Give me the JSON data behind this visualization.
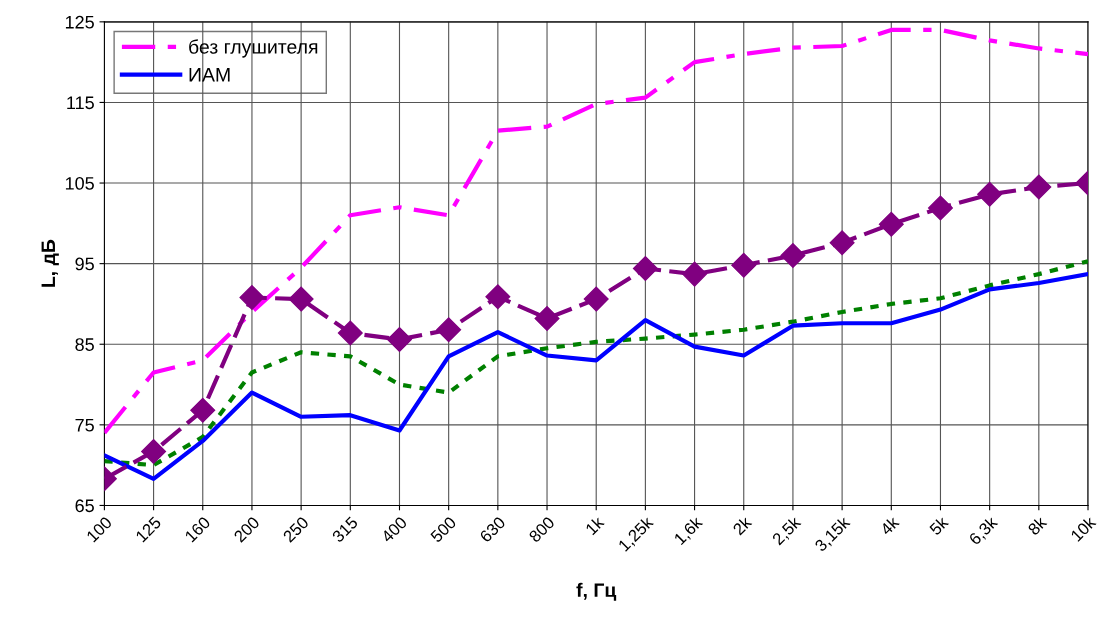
{
  "chart_data": {
    "type": "line",
    "xlabel": "f, Гц",
    "ylabel": "L, дБ",
    "categories": [
      "100",
      "125",
      "160",
      "200",
      "250",
      "315",
      "400",
      "500",
      "630",
      "800",
      "1k",
      "1,25k",
      "1,6k",
      "2k",
      "2,5k",
      "3,15k",
      "4k",
      "5k",
      "6,3k",
      "8k",
      "10k"
    ],
    "ylim": [
      65,
      125
    ],
    "yticks": [
      65,
      75,
      85,
      95,
      105,
      115,
      125
    ],
    "grid": true,
    "legend": "top left",
    "series": [
      {
        "name": "без глушителя",
        "color": "#ff00ff",
        "line_style": "dashdot",
        "values": [
          74,
          81.5,
          83,
          89,
          94.5,
          101,
          102,
          101,
          111.5,
          112,
          114.8,
          115.6,
          120,
          121,
          121.8,
          122,
          124,
          124,
          122.7,
          121.7,
          121
        ]
      },
      {
        "color": "#008000",
        "line_style": "dotted",
        "values": [
          70.5,
          70,
          73.5,
          81.5,
          84,
          83.5,
          80,
          79,
          83.5,
          84.5,
          85.3,
          85.7,
          86.2,
          86.8,
          87.8,
          89,
          90,
          90.7,
          92.3,
          93.7,
          95.3
        ]
      },
      {
        "name": "ИАМ",
        "color": "#0000ff",
        "line_style": "solid",
        "values": [
          71.2,
          68.3,
          73,
          79,
          76,
          76.2,
          74.3,
          83.5,
          86.5,
          83.6,
          83,
          88,
          84.7,
          83.6,
          87.3,
          87.6,
          87.6,
          89.3,
          91.8,
          92.6,
          93.7
        ]
      },
      {
        "color": "#800080",
        "line_style": "dashed",
        "marker": "diamond",
        "values": [
          68.3,
          71.7,
          76.8,
          90.8,
          90.6,
          86.4,
          85.6,
          86.8,
          90.9,
          88.2,
          90.6,
          94.4,
          93.7,
          94.8,
          96,
          97.6,
          99.9,
          101.9,
          103.6,
          104.5,
          105
        ]
      }
    ]
  }
}
